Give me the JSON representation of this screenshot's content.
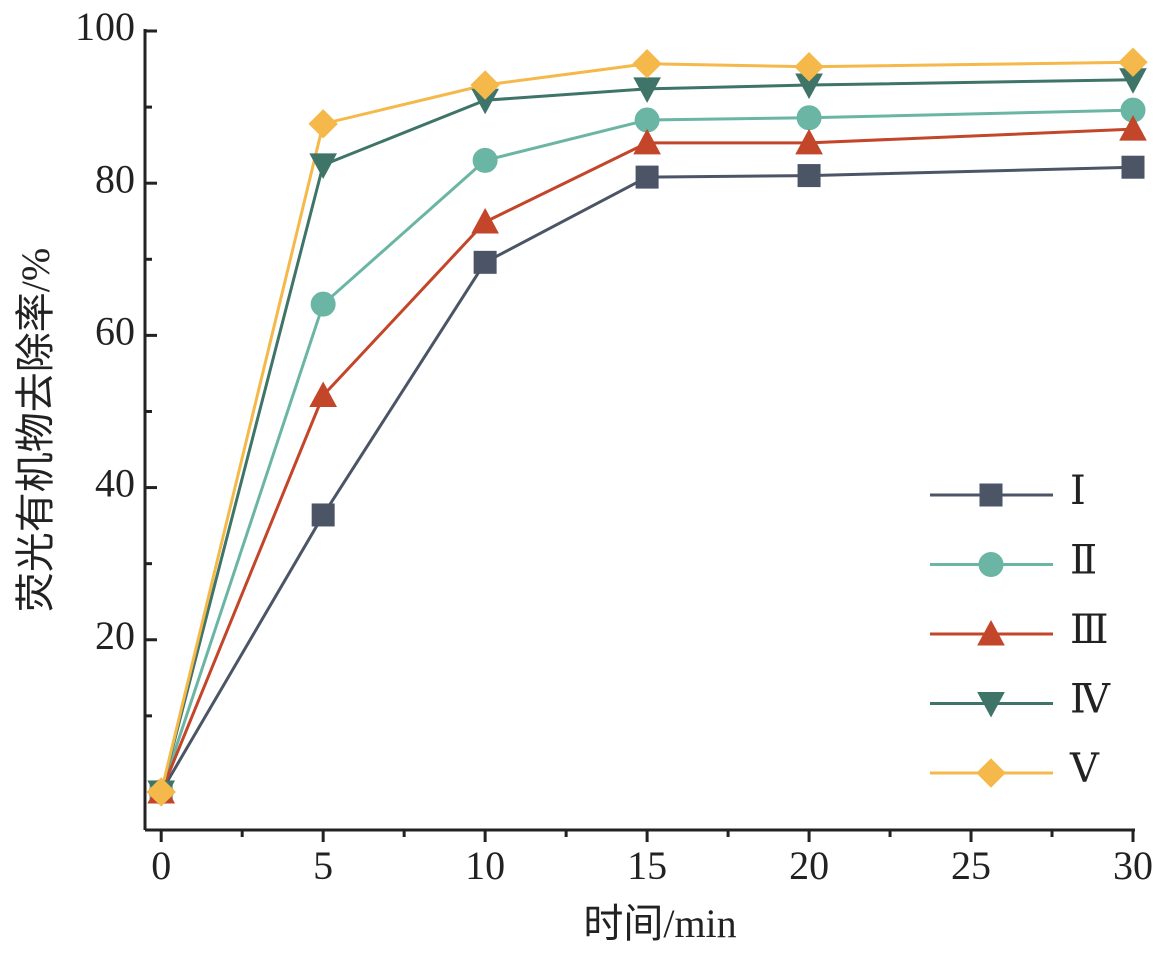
{
  "chart_data": {
    "type": "line",
    "x_label": "时间/min",
    "y_label": "荧光有机物去除率/%",
    "x": [
      0,
      5,
      10,
      15,
      20,
      30
    ],
    "xlim": [
      -0.5,
      30
    ],
    "xticks": [
      0,
      5,
      10,
      15,
      20,
      25,
      30
    ],
    "xminor": [
      2.5,
      7.5,
      12.5,
      17.5,
      22.5,
      27.5
    ],
    "ylim": [
      -5,
      100
    ],
    "yticks": [
      20,
      40,
      60,
      80,
      100
    ],
    "yminor": [
      10,
      30,
      50,
      70,
      90
    ],
    "legend": "lower right",
    "series": [
      {
        "name": "Ⅰ",
        "color": "#4b5566",
        "marker": "square",
        "values": [
          0,
          36.4,
          69.6,
          80.8,
          81.0,
          82.1
        ]
      },
      {
        "name": "Ⅱ",
        "color": "#6bb5a5",
        "marker": "circle",
        "values": [
          0,
          64.1,
          83.0,
          88.3,
          88.6,
          89.6
        ]
      },
      {
        "name": "Ⅲ",
        "color": "#c3462a",
        "marker": "triangle-up",
        "values": [
          0,
          52.1,
          74.9,
          85.3,
          85.3,
          87.1
        ]
      },
      {
        "name": "Ⅳ",
        "color": "#3f7468",
        "marker": "triangle-down",
        "values": [
          0,
          82.4,
          90.9,
          92.4,
          92.9,
          93.6
        ]
      },
      {
        "name": "Ⅴ",
        "color": "#f5b84a",
        "marker": "diamond",
        "values": [
          0,
          87.8,
          92.9,
          95.7,
          95.3,
          95.9
        ]
      }
    ]
  }
}
